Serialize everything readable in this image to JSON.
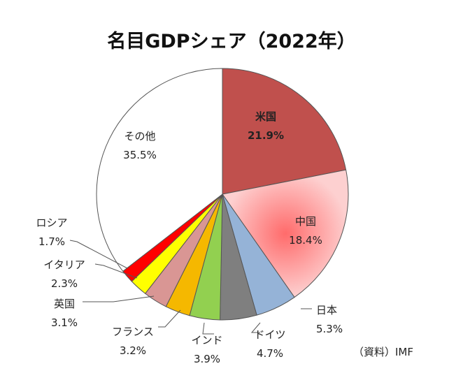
{
  "chart_data": {
    "type": "pie",
    "title": "名目GDPシェア（2022年）",
    "source": "（資料）IMF",
    "slices": [
      {
        "name": "米国",
        "value": 21.9,
        "label": "21.9%",
        "color": "#c0504d"
      },
      {
        "name": "中国",
        "value": 18.4,
        "label": "18.4%",
        "color": "#f7a7a7"
      },
      {
        "name": "日本",
        "value": 5.3,
        "label": "5.3%",
        "color": "#95b3d7"
      },
      {
        "name": "ドイツ",
        "value": 4.7,
        "label": "4.7%",
        "color": "#7f7f7f"
      },
      {
        "name": "インド",
        "value": 3.9,
        "label": "3.9%",
        "color": "#92d050"
      },
      {
        "name": "フランス",
        "value": 3.2,
        "label": "3.2%",
        "color": "#f5b800"
      },
      {
        "name": "英国",
        "value": 3.1,
        "label": "3.1%",
        "color": "#d99694"
      },
      {
        "name": "イタリア",
        "value": 2.3,
        "label": "2.3%",
        "color": "#ffff00"
      },
      {
        "name": "ロシア",
        "value": 1.7,
        "label": "1.7%",
        "color": "#ff0000"
      },
      {
        "name": "その他",
        "value": 35.5,
        "label": "35.5%",
        "color": "#ffffff"
      }
    ],
    "label_colors": {
      "米国": "#ffd700"
    }
  }
}
